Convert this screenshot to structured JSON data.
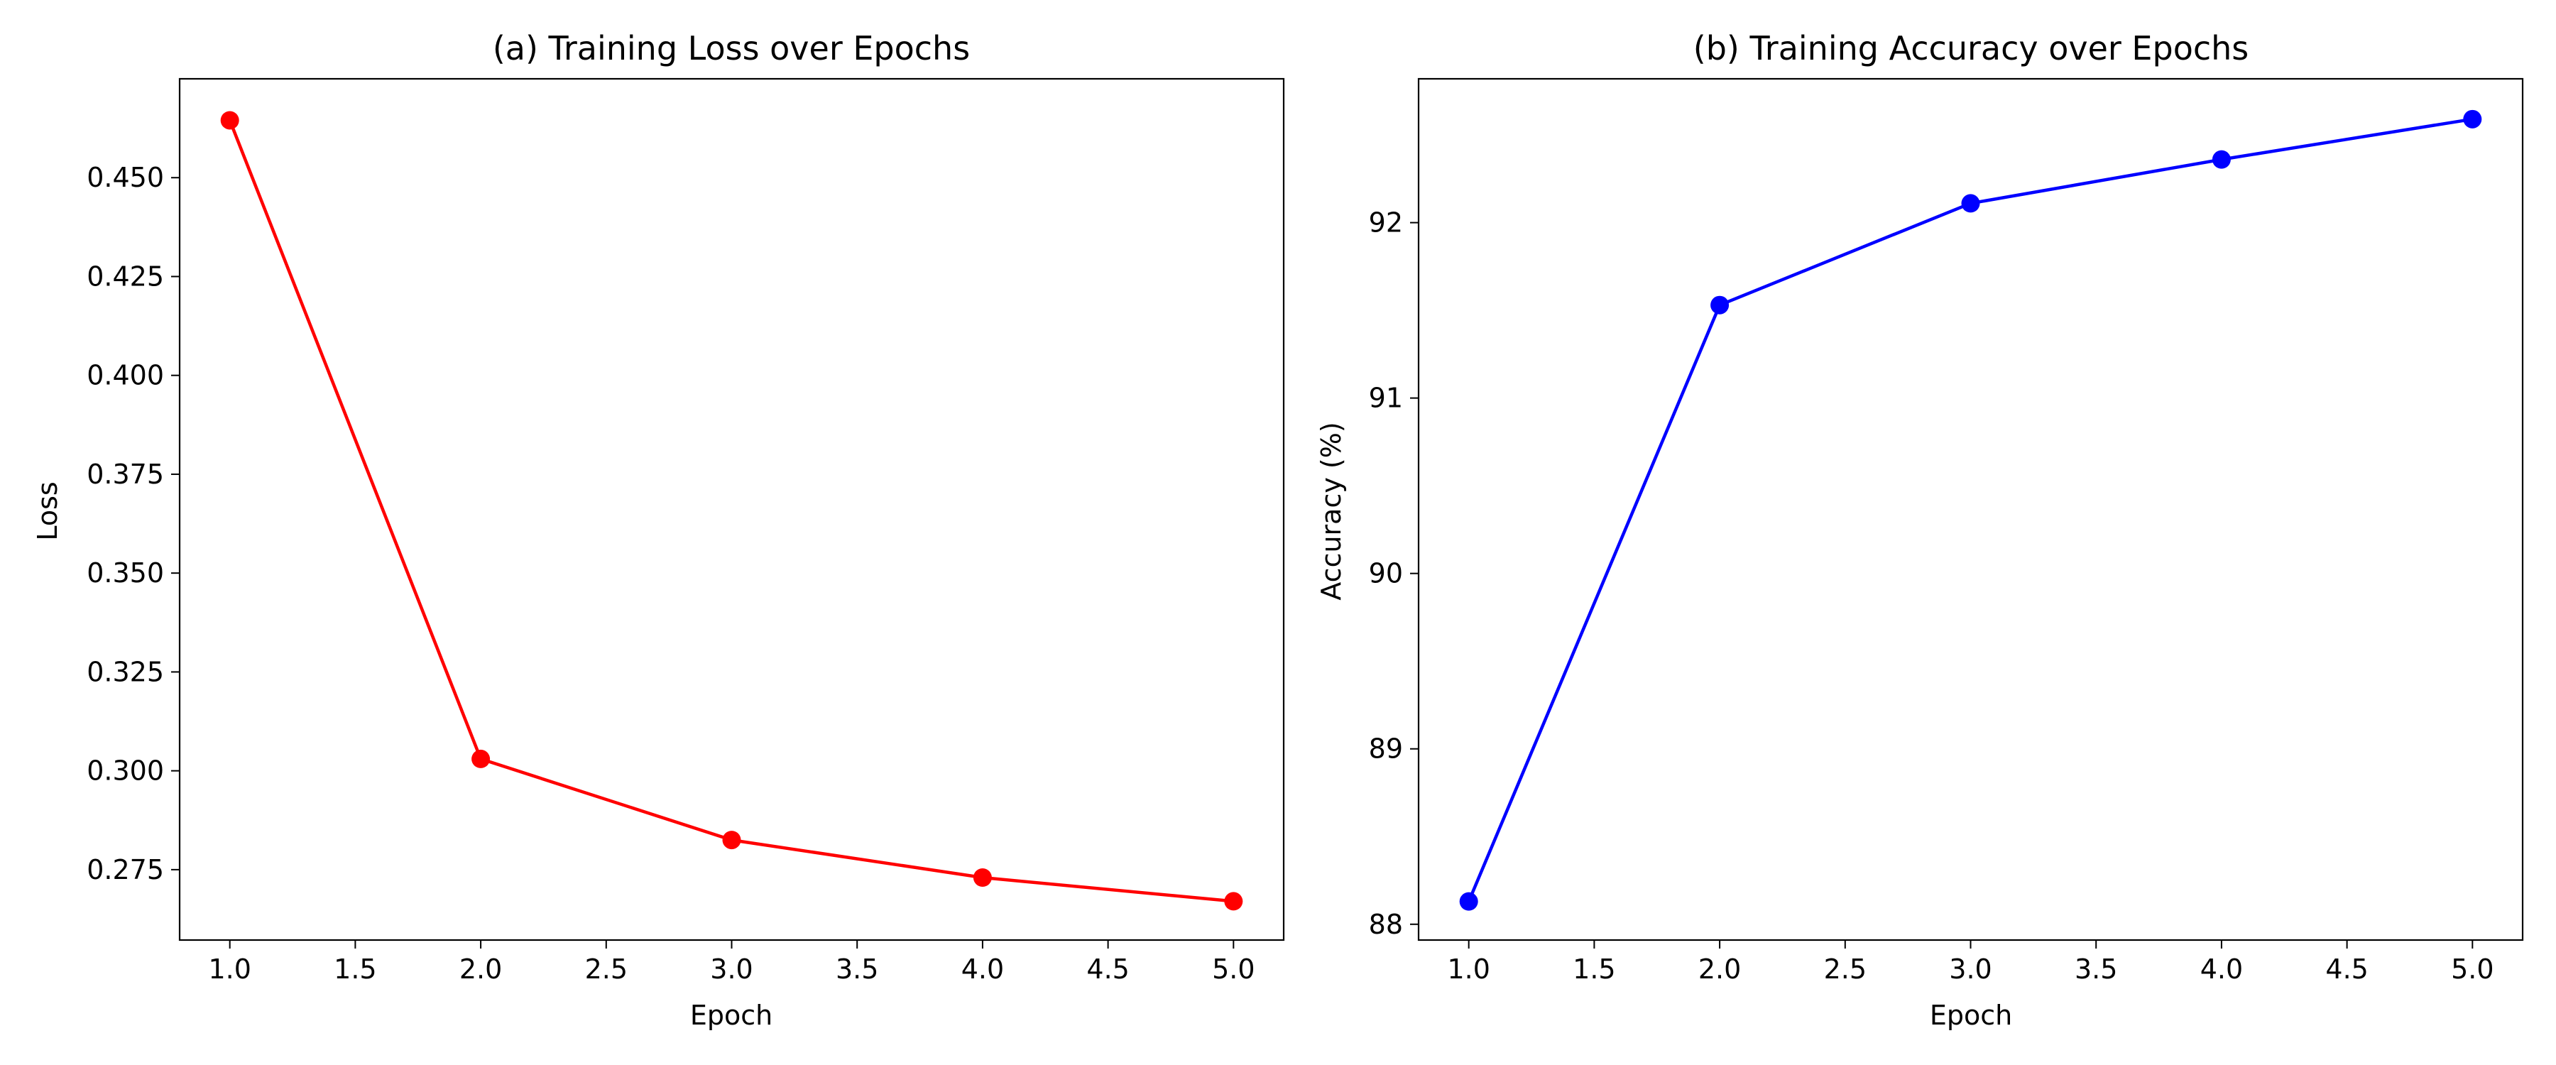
{
  "figure": {
    "background": "#ffffff"
  },
  "chart_data": [
    {
      "id": "loss",
      "type": "line",
      "title": "(a) Training Loss over Epochs",
      "xlabel": "Epoch",
      "ylabel": "Loss",
      "color": "#ff0000",
      "marker": "circle",
      "grid": false,
      "legend": "none",
      "xlim": [
        0.8,
        5.2
      ],
      "ylim": [
        0.2572,
        0.475
      ],
      "x_ticks": [
        1.0,
        1.5,
        2.0,
        2.5,
        3.0,
        3.5,
        4.0,
        4.5,
        5.0
      ],
      "x_tick_labels": [
        "1.0",
        "1.5",
        "2.0",
        "2.5",
        "3.0",
        "3.5",
        "4.0",
        "4.5",
        "5.0"
      ],
      "y_ticks": [
        0.275,
        0.3,
        0.325,
        0.35,
        0.375,
        0.4,
        0.425,
        0.45
      ],
      "y_tick_labels": [
        "0.275",
        "0.300",
        "0.325",
        "0.350",
        "0.375",
        "0.400",
        "0.425",
        "0.450"
      ],
      "x": [
        1,
        2,
        3,
        4,
        5
      ],
      "y": [
        0.4645,
        0.303,
        0.2825,
        0.273,
        0.267
      ]
    },
    {
      "id": "accuracy",
      "type": "line",
      "title": "(b) Training Accuracy over Epochs",
      "xlabel": "Epoch",
      "ylabel": "Accuracy (%)",
      "color": "#0000ff",
      "marker": "circle",
      "grid": false,
      "legend": "none",
      "xlim": [
        0.8,
        5.2
      ],
      "ylim": [
        87.91,
        92.82
      ],
      "x_ticks": [
        1.0,
        1.5,
        2.0,
        2.5,
        3.0,
        3.5,
        4.0,
        4.5,
        5.0
      ],
      "x_tick_labels": [
        "1.0",
        "1.5",
        "2.0",
        "2.5",
        "3.0",
        "3.5",
        "4.0",
        "4.5",
        "5.0"
      ],
      "y_ticks": [
        88,
        89,
        90,
        91,
        92
      ],
      "y_tick_labels": [
        "88",
        "89",
        "90",
        "91",
        "92"
      ],
      "x": [
        1,
        2,
        3,
        4,
        5
      ],
      "y": [
        88.13,
        91.53,
        92.11,
        92.36,
        92.59
      ]
    }
  ]
}
